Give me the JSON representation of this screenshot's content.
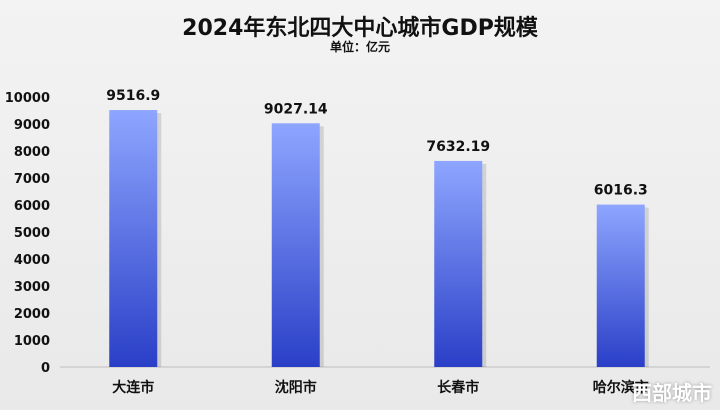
{
  "chart_data": {
    "type": "bar",
    "title": "2024年东北四大中心城市GDP规模",
    "subtitle": "单位：亿元",
    "categories": [
      "大连市",
      "沈阳市",
      "长春市",
      "哈尔滨市"
    ],
    "values": [
      9516.9,
      9027.14,
      7632.19,
      6016.3
    ],
    "value_labels": [
      "9516.9",
      "9027.14",
      "7632.19",
      "6016.3"
    ],
    "ylim": [
      0,
      10000
    ],
    "yticks": [
      0,
      1000,
      2000,
      3000,
      4000,
      5000,
      6000,
      7000,
      8000,
      9000,
      10000
    ],
    "grid": false,
    "bar_color_top": "#8ea6ff",
    "bar_color_bottom": "#2a3fc7"
  },
  "watermark": "西部城市"
}
